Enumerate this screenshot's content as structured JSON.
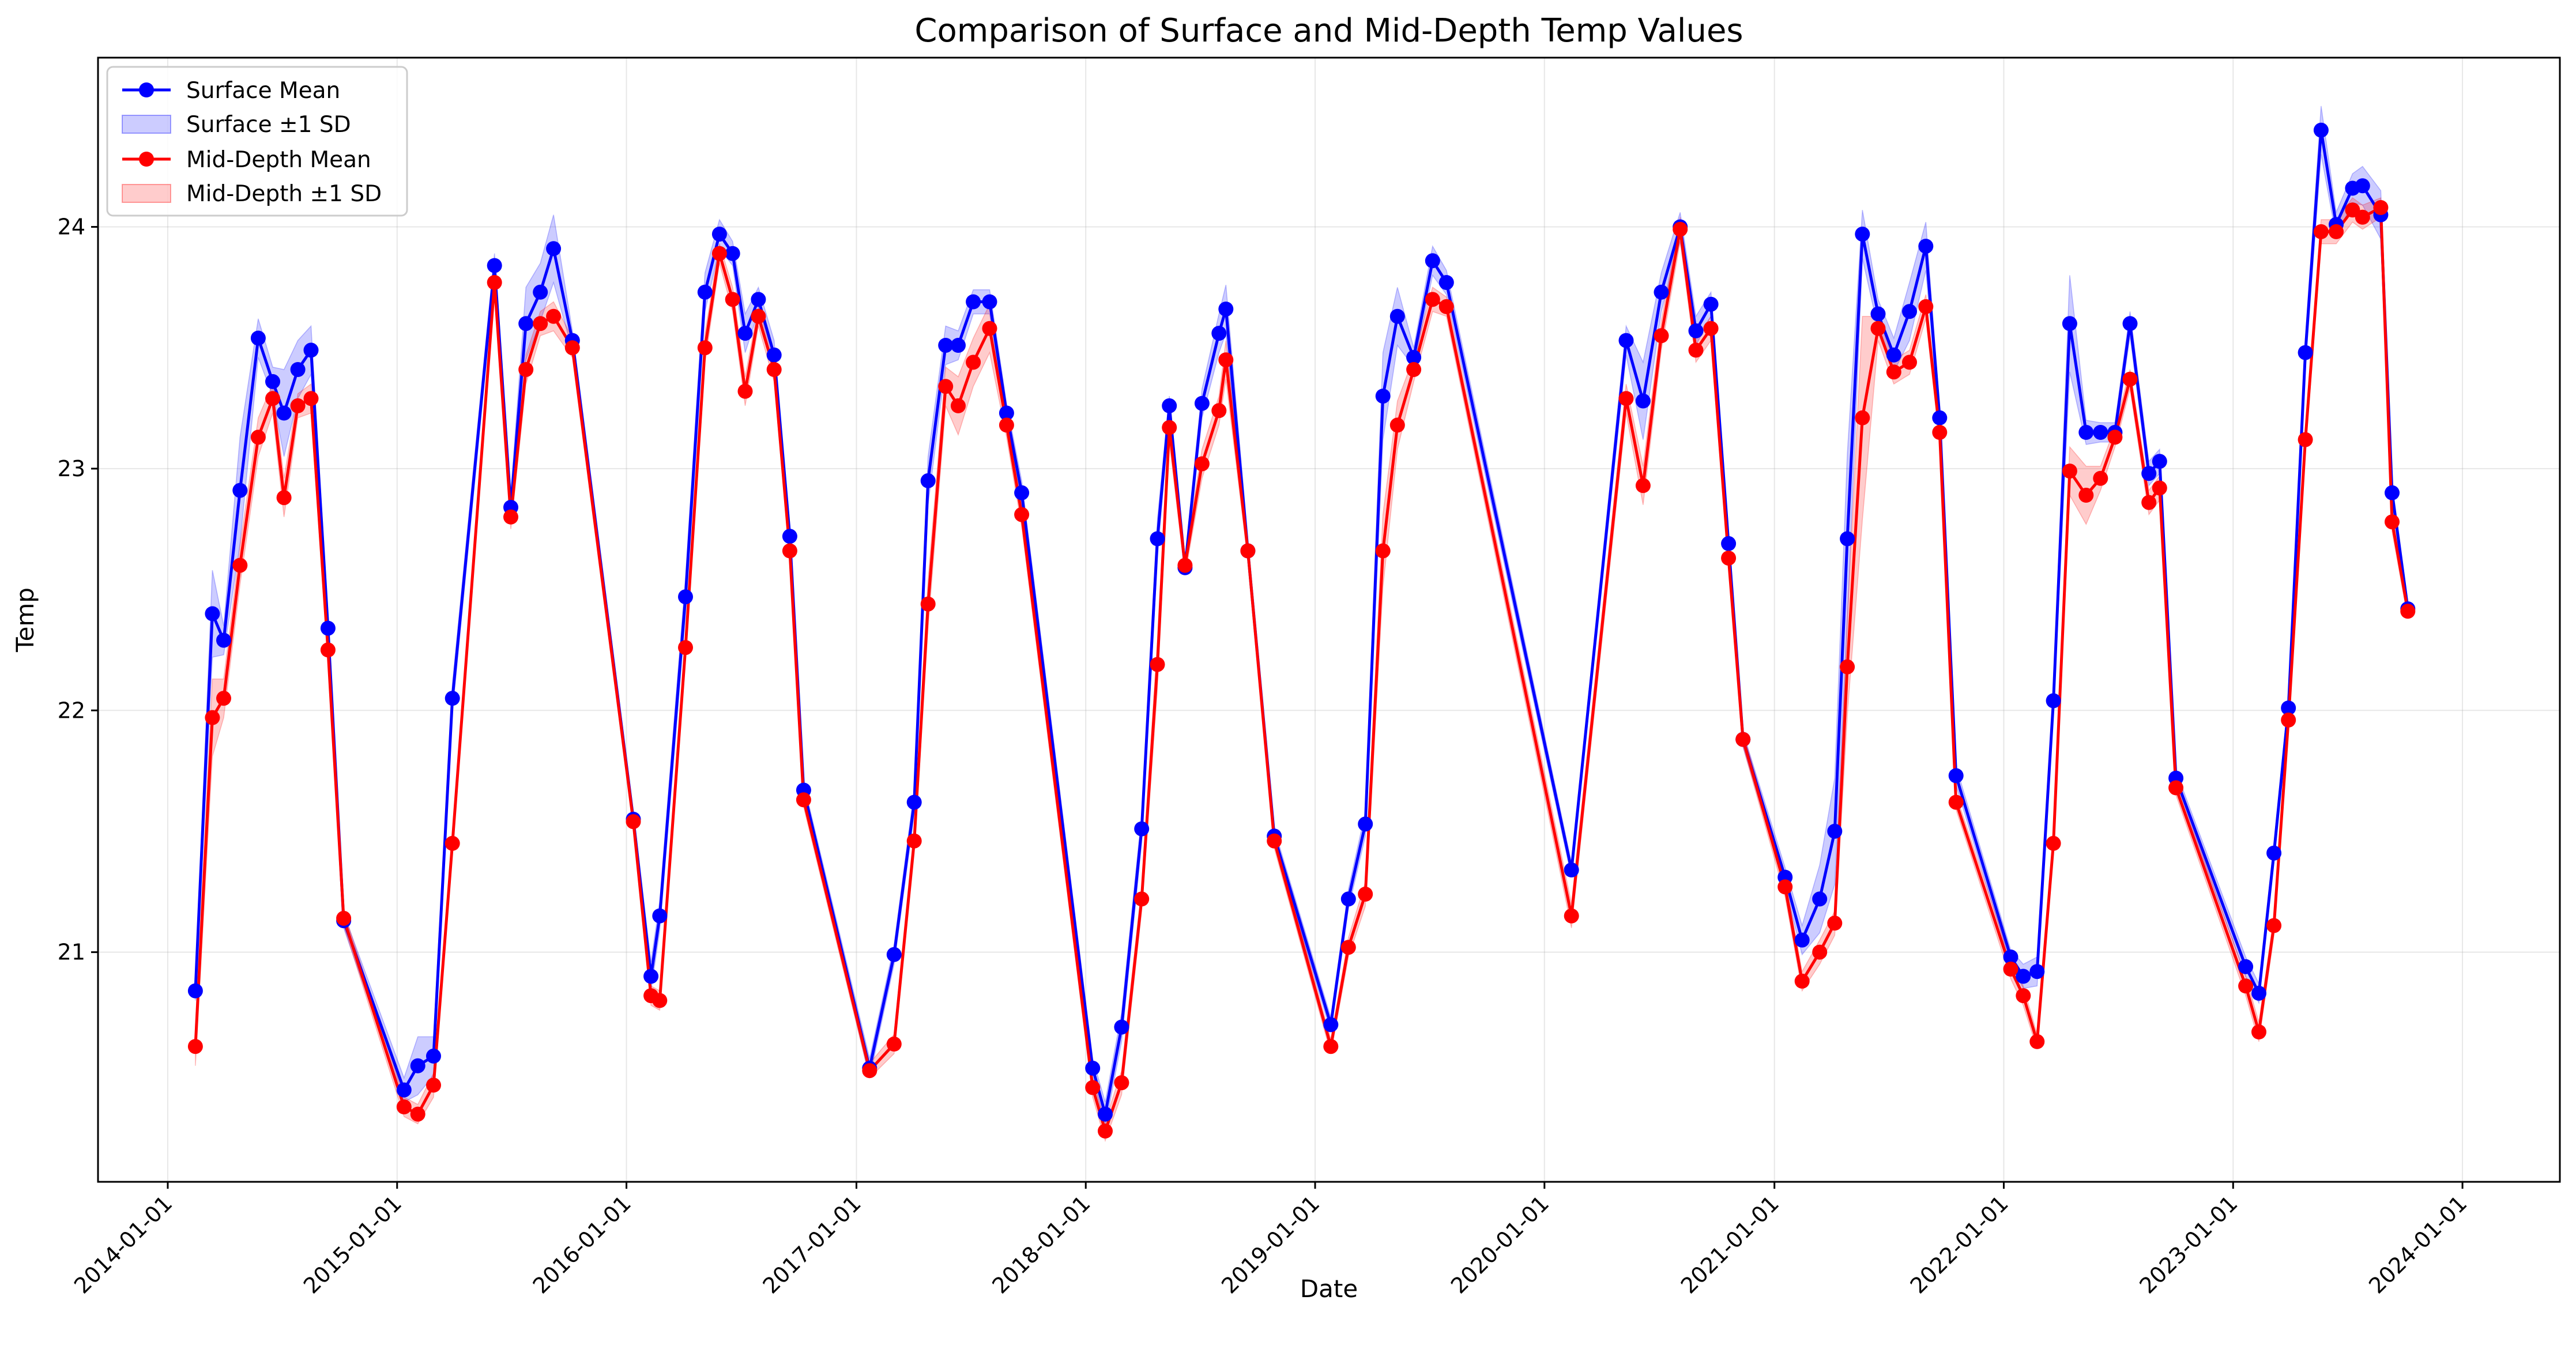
{
  "chart_data": {
    "type": "line",
    "title": "Comparison of Surface and Mid-Depth Temp Values",
    "xlabel": "Date",
    "ylabel": "Temp",
    "xlim": [
      "2013-09-12",
      "2024-06-04"
    ],
    "ylim": [
      20.05,
      24.7
    ],
    "x_ticks": [
      "2014-01-01",
      "2015-01-01",
      "2016-01-01",
      "2017-01-01",
      "2018-01-01",
      "2019-01-01",
      "2020-01-01",
      "2021-01-01",
      "2022-01-01",
      "2023-01-01",
      "2024-01-01"
    ],
    "y_ticks": [
      21,
      22,
      23,
      24
    ],
    "grid": true,
    "legend": {
      "placement": "top-left",
      "entries": [
        "Surface Mean",
        "Surface ±1 SD",
        "Mid-Depth Mean",
        "Mid-Depth ±1 SD"
      ]
    },
    "colors": {
      "surface": "#0000ff",
      "middepth": "#ff0000"
    },
    "series": [
      {
        "name": "Surface Mean",
        "sd_name": "Surface ±1 SD",
        "color": "#0000ff",
        "points": [
          [
            "2014-02-14",
            20.84,
            0.04
          ],
          [
            "2014-03-13",
            22.4,
            0.18
          ],
          [
            "2014-03-31",
            22.29,
            0.06
          ],
          [
            "2014-04-26",
            22.91,
            0.22
          ],
          [
            "2014-05-25",
            23.54,
            0.08
          ],
          [
            "2014-06-17",
            23.36,
            0.06
          ],
          [
            "2014-07-05",
            23.23,
            0.18
          ],
          [
            "2014-07-27",
            23.41,
            0.12
          ],
          [
            "2014-08-17",
            23.49,
            0.1
          ],
          [
            "2014-09-13",
            22.34,
            0.05
          ],
          [
            "2014-10-08",
            21.13,
            0.03
          ],
          [
            "2015-01-12",
            20.43,
            0.05
          ],
          [
            "2015-02-03",
            20.53,
            0.12
          ],
          [
            "2015-02-28",
            20.57,
            0.08
          ],
          [
            "2015-03-30",
            22.05,
            0.06
          ],
          [
            "2015-06-05",
            23.84,
            0.05
          ],
          [
            "2015-07-01",
            22.84,
            0.06
          ],
          [
            "2015-07-25",
            23.6,
            0.15
          ],
          [
            "2015-08-17",
            23.73,
            0.12
          ],
          [
            "2015-09-07",
            23.91,
            0.14
          ],
          [
            "2015-10-07",
            23.53,
            0.04
          ],
          [
            "2016-01-12",
            21.55,
            0.03
          ],
          [
            "2016-02-09",
            20.9,
            0.06
          ],
          [
            "2016-02-23",
            21.15,
            0.06
          ],
          [
            "2016-04-04",
            22.47,
            0.08
          ],
          [
            "2016-05-05",
            23.73,
            0.08
          ],
          [
            "2016-05-28",
            23.97,
            0.06
          ],
          [
            "2016-06-18",
            23.89,
            0.05
          ],
          [
            "2016-07-08",
            23.56,
            0.08
          ],
          [
            "2016-07-29",
            23.7,
            0.05
          ],
          [
            "2016-08-23",
            23.47,
            0.06
          ],
          [
            "2016-09-17",
            22.72,
            0.05
          ],
          [
            "2016-10-09",
            21.67,
            0.03
          ],
          [
            "2017-01-22",
            20.52,
            0.04
          ],
          [
            "2017-03-02",
            20.99,
            0.04
          ],
          [
            "2017-04-03",
            21.62,
            0.05
          ],
          [
            "2017-04-25",
            22.95,
            0.1
          ],
          [
            "2017-05-23",
            23.51,
            0.08
          ],
          [
            "2017-06-12",
            23.51,
            0.06
          ],
          [
            "2017-07-06",
            23.69,
            0.05
          ],
          [
            "2017-08-01",
            23.69,
            0.05
          ],
          [
            "2017-08-28",
            23.23,
            0.04
          ],
          [
            "2017-09-21",
            22.9,
            0.05
          ],
          [
            "2018-01-12",
            20.52,
            0.04
          ],
          [
            "2018-02-01",
            20.33,
            0.05
          ],
          [
            "2018-02-27",
            20.69,
            0.06
          ],
          [
            "2018-03-31",
            21.51,
            0.06
          ],
          [
            "2018-04-25",
            22.71,
            0.08
          ],
          [
            "2018-05-14",
            23.26,
            0.04
          ],
          [
            "2018-06-08",
            22.59,
            0.03
          ],
          [
            "2018-07-05",
            23.27,
            0.06
          ],
          [
            "2018-08-01",
            23.56,
            0.08
          ],
          [
            "2018-08-12",
            23.66,
            0.1
          ],
          [
            "2018-09-16",
            22.66,
            0.05
          ],
          [
            "2018-10-28",
            21.48,
            0.03
          ],
          [
            "2019-01-26",
            20.7,
            0.03
          ],
          [
            "2019-02-23",
            21.22,
            0.04
          ],
          [
            "2019-03-22",
            21.53,
            0.05
          ],
          [
            "2019-04-19",
            23.3,
            0.18
          ],
          [
            "2019-05-12",
            23.63,
            0.12
          ],
          [
            "2019-06-07",
            23.46,
            0.04
          ],
          [
            "2019-07-07",
            23.86,
            0.06
          ],
          [
            "2019-07-29",
            23.77,
            0.05
          ],
          [
            "2020-02-13",
            21.34,
            0.03
          ],
          [
            "2020-05-10",
            23.53,
            0.06
          ],
          [
            "2020-06-06",
            23.28,
            0.16
          ],
          [
            "2020-07-05",
            23.73,
            0.08
          ],
          [
            "2020-08-04",
            24.0,
            0.06
          ],
          [
            "2020-08-29",
            23.57,
            0.06
          ],
          [
            "2020-09-22",
            23.68,
            0.05
          ],
          [
            "2020-10-20",
            22.69,
            0.04
          ],
          [
            "2020-11-12",
            21.88,
            0.03
          ],
          [
            "2021-01-18",
            21.31,
            0.04
          ],
          [
            "2021-02-14",
            21.05,
            0.06
          ],
          [
            "2021-03-14",
            21.22,
            0.14
          ],
          [
            "2021-04-07",
            21.5,
            0.22
          ],
          [
            "2021-04-27",
            22.71,
            0.35
          ],
          [
            "2021-05-21",
            23.97,
            0.1
          ],
          [
            "2021-06-15",
            23.64,
            0.06
          ],
          [
            "2021-07-10",
            23.47,
            0.07
          ],
          [
            "2021-08-04",
            23.65,
            0.12
          ],
          [
            "2021-08-30",
            23.92,
            0.1
          ],
          [
            "2021-09-21",
            23.21,
            0.04
          ],
          [
            "2021-10-17",
            21.73,
            0.04
          ],
          [
            "2022-01-12",
            20.98,
            0.03
          ],
          [
            "2022-02-01",
            20.9,
            0.05
          ],
          [
            "2022-02-23",
            20.92,
            0.06
          ],
          [
            "2022-03-21",
            22.04,
            0.05
          ],
          [
            "2022-04-16",
            23.6,
            0.2
          ],
          [
            "2022-05-12",
            23.15,
            0.05
          ],
          [
            "2022-06-04",
            23.15,
            0.04
          ],
          [
            "2022-06-27",
            23.15,
            0.04
          ],
          [
            "2022-07-21",
            23.6,
            0.05
          ],
          [
            "2022-08-20",
            22.98,
            0.05
          ],
          [
            "2022-09-06",
            23.03,
            0.05
          ],
          [
            "2022-10-02",
            21.72,
            0.03
          ],
          [
            "2023-01-21",
            20.94,
            0.04
          ],
          [
            "2023-02-11",
            20.83,
            0.04
          ],
          [
            "2023-03-07",
            21.41,
            0.04
          ],
          [
            "2023-03-30",
            22.01,
            0.04
          ],
          [
            "2023-04-26",
            23.48,
            0.06
          ],
          [
            "2023-05-21",
            24.4,
            0.1
          ],
          [
            "2023-06-14",
            24.01,
            0.05
          ],
          [
            "2023-07-10",
            24.16,
            0.06
          ],
          [
            "2023-07-26",
            24.17,
            0.08
          ],
          [
            "2023-08-24",
            24.05,
            0.1
          ],
          [
            "2023-09-11",
            22.9,
            0.04
          ],
          [
            "2023-10-06",
            22.42,
            0.03
          ]
        ]
      },
      {
        "name": "Mid-Depth Mean",
        "sd_name": "Mid-Depth ±1 SD",
        "color": "#ff0000",
        "points": [
          [
            "2014-02-14",
            20.61,
            0.08
          ],
          [
            "2014-03-13",
            21.97,
            0.16
          ],
          [
            "2014-03-31",
            22.05,
            0.08
          ],
          [
            "2014-04-26",
            22.6,
            0.08
          ],
          [
            "2014-05-25",
            23.13,
            0.08
          ],
          [
            "2014-06-17",
            23.29,
            0.06
          ],
          [
            "2014-07-05",
            22.88,
            0.08
          ],
          [
            "2014-07-27",
            23.26,
            0.05
          ],
          [
            "2014-08-17",
            23.29,
            0.06
          ],
          [
            "2014-09-13",
            22.25,
            0.05
          ],
          [
            "2014-10-08",
            21.14,
            0.03
          ],
          [
            "2015-01-12",
            20.36,
            0.04
          ],
          [
            "2015-02-03",
            20.33,
            0.04
          ],
          [
            "2015-02-28",
            20.45,
            0.05
          ],
          [
            "2015-03-30",
            21.45,
            0.04
          ],
          [
            "2015-06-05",
            23.77,
            0.04
          ],
          [
            "2015-07-01",
            22.8,
            0.05
          ],
          [
            "2015-07-25",
            23.41,
            0.06
          ],
          [
            "2015-08-17",
            23.6,
            0.05
          ],
          [
            "2015-09-07",
            23.63,
            0.06
          ],
          [
            "2015-10-07",
            23.5,
            0.04
          ],
          [
            "2016-01-12",
            21.54,
            0.03
          ],
          [
            "2016-02-09",
            20.82,
            0.04
          ],
          [
            "2016-02-23",
            20.8,
            0.04
          ],
          [
            "2016-04-04",
            22.26,
            0.05
          ],
          [
            "2016-05-05",
            23.5,
            0.06
          ],
          [
            "2016-05-28",
            23.89,
            0.04
          ],
          [
            "2016-06-18",
            23.7,
            0.05
          ],
          [
            "2016-07-08",
            23.32,
            0.06
          ],
          [
            "2016-07-29",
            23.63,
            0.04
          ],
          [
            "2016-08-23",
            23.41,
            0.05
          ],
          [
            "2016-09-17",
            22.66,
            0.04
          ],
          [
            "2016-10-09",
            21.63,
            0.03
          ],
          [
            "2017-01-22",
            20.51,
            0.03
          ],
          [
            "2017-03-02",
            20.62,
            0.04
          ],
          [
            "2017-04-03",
            21.46,
            0.05
          ],
          [
            "2017-04-25",
            22.44,
            0.1
          ],
          [
            "2017-05-23",
            23.34,
            0.08
          ],
          [
            "2017-06-12",
            23.26,
            0.12
          ],
          [
            "2017-07-06",
            23.44,
            0.1
          ],
          [
            "2017-08-01",
            23.58,
            0.1
          ],
          [
            "2017-08-28",
            23.18,
            0.05
          ],
          [
            "2017-09-21",
            22.81,
            0.05
          ],
          [
            "2018-01-12",
            20.44,
            0.04
          ],
          [
            "2018-02-01",
            20.26,
            0.04
          ],
          [
            "2018-02-27",
            20.46,
            0.05
          ],
          [
            "2018-03-31",
            21.22,
            0.05
          ],
          [
            "2018-04-25",
            22.19,
            0.1
          ],
          [
            "2018-05-14",
            23.17,
            0.06
          ],
          [
            "2018-06-08",
            22.6,
            0.04
          ],
          [
            "2018-07-05",
            23.02,
            0.06
          ],
          [
            "2018-08-01",
            23.24,
            0.06
          ],
          [
            "2018-08-12",
            23.45,
            0.08
          ],
          [
            "2018-09-16",
            22.66,
            0.04
          ],
          [
            "2018-10-28",
            21.46,
            0.03
          ],
          [
            "2019-01-26",
            20.61,
            0.03
          ],
          [
            "2019-02-23",
            21.02,
            0.04
          ],
          [
            "2019-03-22",
            21.24,
            0.05
          ],
          [
            "2019-04-19",
            22.66,
            0.15
          ],
          [
            "2019-05-12",
            23.18,
            0.1
          ],
          [
            "2019-06-07",
            23.41,
            0.05
          ],
          [
            "2019-07-07",
            23.7,
            0.05
          ],
          [
            "2019-07-29",
            23.67,
            0.04
          ],
          [
            "2020-02-13",
            21.15,
            0.05
          ],
          [
            "2020-05-10",
            23.29,
            0.06
          ],
          [
            "2020-06-06",
            22.93,
            0.08
          ],
          [
            "2020-07-05",
            23.55,
            0.06
          ],
          [
            "2020-08-04",
            23.99,
            0.05
          ],
          [
            "2020-08-29",
            23.49,
            0.05
          ],
          [
            "2020-09-22",
            23.58,
            0.05
          ],
          [
            "2020-10-20",
            22.63,
            0.04
          ],
          [
            "2020-11-12",
            21.88,
            0.03
          ],
          [
            "2021-01-18",
            21.27,
            0.04
          ],
          [
            "2021-02-14",
            20.88,
            0.04
          ],
          [
            "2021-03-14",
            21.0,
            0.05
          ],
          [
            "2021-04-07",
            21.12,
            0.05
          ],
          [
            "2021-04-27",
            22.18,
            0.2
          ],
          [
            "2021-05-21",
            23.21,
            0.42
          ],
          [
            "2021-06-15",
            23.58,
            0.05
          ],
          [
            "2021-07-10",
            23.4,
            0.05
          ],
          [
            "2021-08-04",
            23.44,
            0.05
          ],
          [
            "2021-08-30",
            23.67,
            0.05
          ],
          [
            "2021-09-21",
            23.15,
            0.04
          ],
          [
            "2021-10-17",
            21.62,
            0.03
          ],
          [
            "2022-01-12",
            20.93,
            0.04
          ],
          [
            "2022-02-01",
            20.82,
            0.04
          ],
          [
            "2022-02-23",
            20.63,
            0.03
          ],
          [
            "2022-03-21",
            21.45,
            0.04
          ],
          [
            "2022-04-16",
            22.99,
            0.1
          ],
          [
            "2022-05-12",
            22.89,
            0.12
          ],
          [
            "2022-06-04",
            22.96,
            0.05
          ],
          [
            "2022-06-27",
            23.13,
            0.04
          ],
          [
            "2022-07-21",
            23.37,
            0.04
          ],
          [
            "2022-08-20",
            22.86,
            0.05
          ],
          [
            "2022-09-06",
            22.92,
            0.05
          ],
          [
            "2022-10-02",
            21.68,
            0.03
          ],
          [
            "2023-01-21",
            20.86,
            0.04
          ],
          [
            "2023-02-11",
            20.67,
            0.04
          ],
          [
            "2023-03-07",
            21.11,
            0.04
          ],
          [
            "2023-03-30",
            21.96,
            0.04
          ],
          [
            "2023-04-26",
            23.12,
            0.05
          ],
          [
            "2023-05-21",
            23.98,
            0.05
          ],
          [
            "2023-06-14",
            23.98,
            0.05
          ],
          [
            "2023-07-10",
            24.07,
            0.05
          ],
          [
            "2023-07-26",
            24.04,
            0.05
          ],
          [
            "2023-08-24",
            24.08,
            0.04
          ],
          [
            "2023-09-11",
            22.78,
            0.04
          ],
          [
            "2023-10-06",
            22.41,
            0.03
          ]
        ]
      }
    ]
  }
}
